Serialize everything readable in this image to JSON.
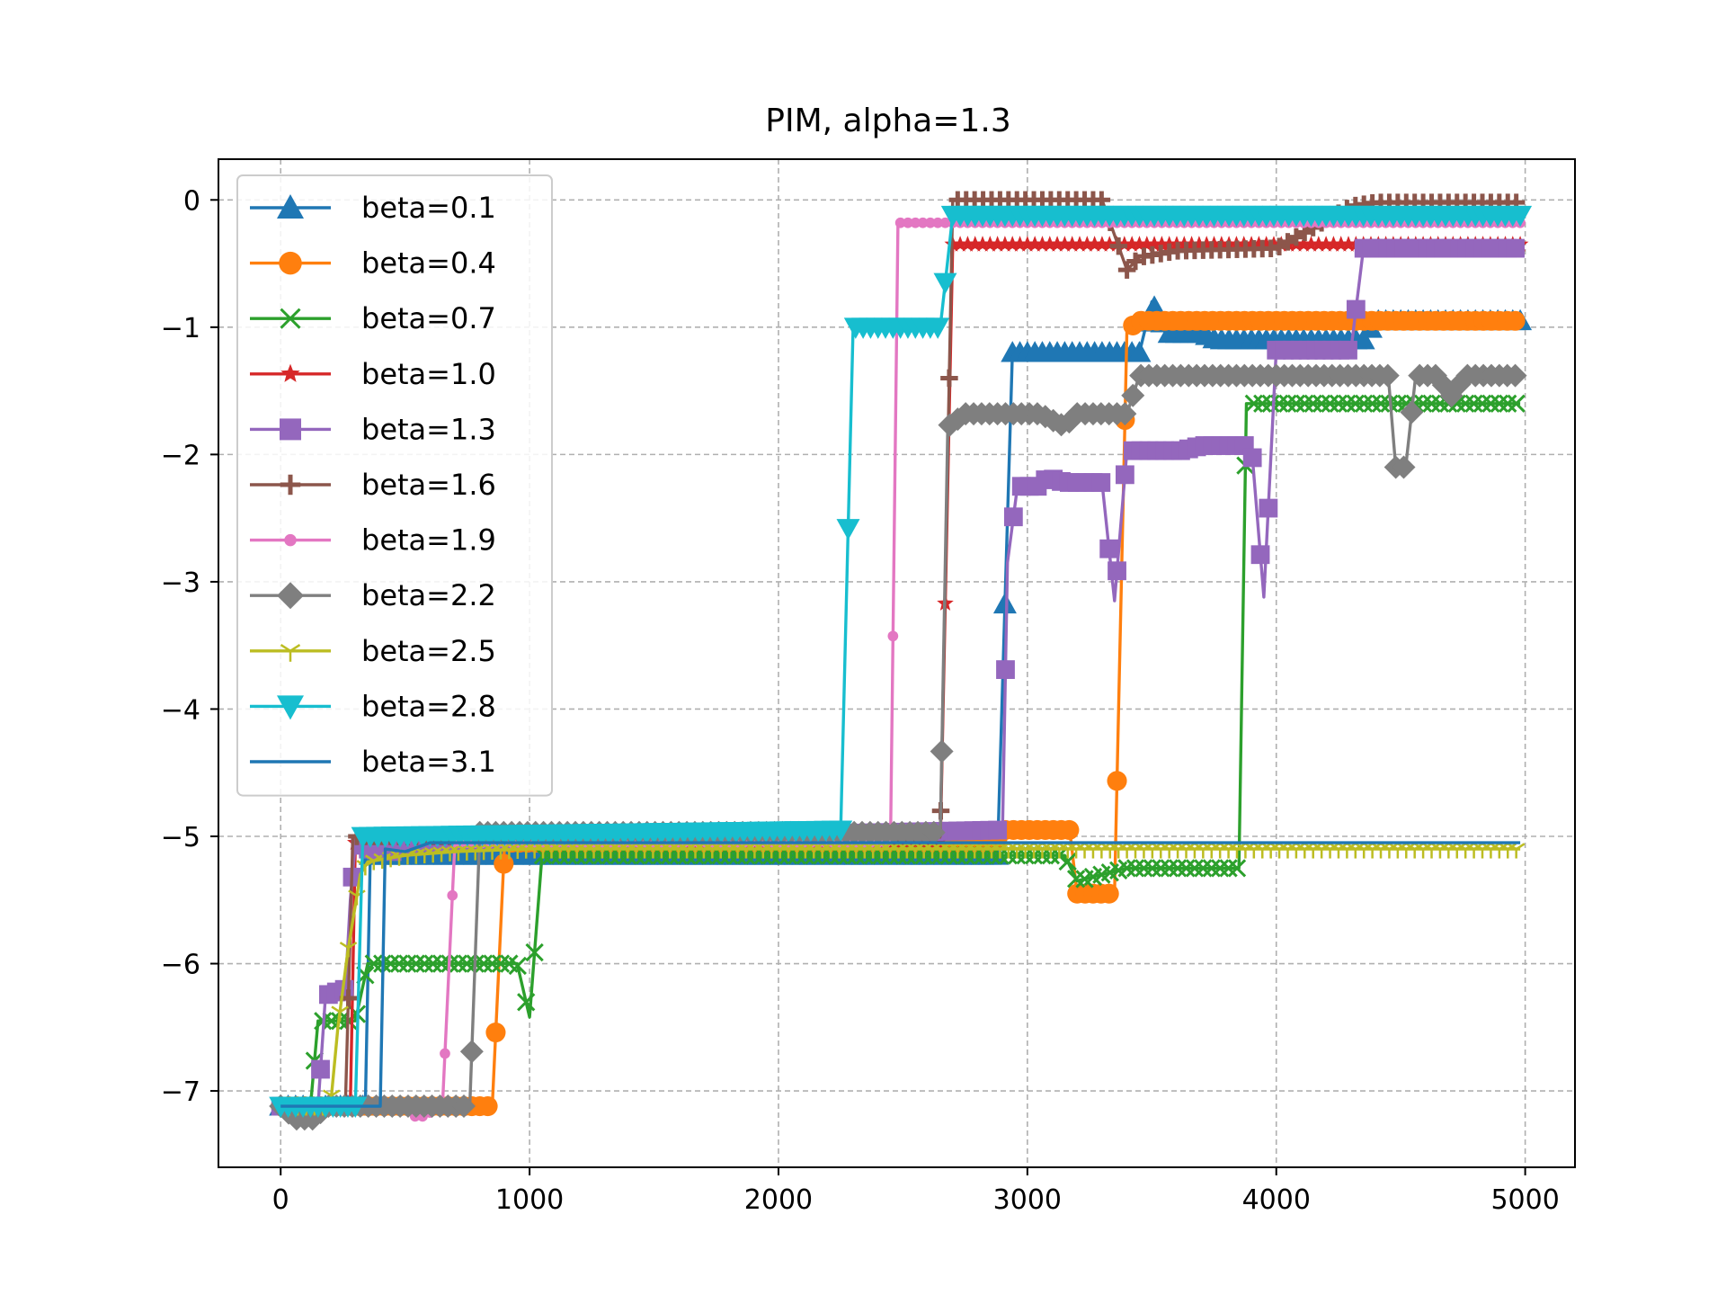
{
  "chart_data": {
    "type": "line",
    "title": "PIM, alpha=1.3",
    "xlabel": "",
    "ylabel": "",
    "xlim": [
      -250,
      5200
    ],
    "ylim": [
      -7.6,
      0.32
    ],
    "x_ticks": [
      0,
      1000,
      2000,
      3000,
      4000,
      5000
    ],
    "x_tick_labels": [
      "0",
      "1000",
      "2000",
      "3000",
      "4000",
      "5000"
    ],
    "y_ticks": [
      0,
      -1,
      -2,
      -3,
      -4,
      -5,
      -6,
      -7
    ],
    "y_tick_labels": [
      "0",
      "−1",
      "−2",
      "−3",
      "−4",
      "−5",
      "−6",
      "−7"
    ],
    "grid": true,
    "legend_position": "upper-left",
    "series": [
      {
        "name": "beta=0.1",
        "color": "#1f77b4",
        "marker": "triangle-up",
        "points": [
          [
            0,
            -7.12
          ],
          [
            340,
            -7.12
          ],
          [
            360,
            -5.15
          ],
          [
            2880,
            -5.15
          ],
          [
            2940,
            -1.2
          ],
          [
            3450,
            -1.2
          ],
          [
            3500,
            -0.8
          ],
          [
            3560,
            -1.05
          ],
          [
            3700,
            -1.05
          ],
          [
            3760,
            -1.1
          ],
          [
            4350,
            -1.1
          ],
          [
            4400,
            -0.95
          ],
          [
            4980,
            -0.95
          ]
        ]
      },
      {
        "name": "beta=0.4",
        "color": "#ff7f0e",
        "marker": "circle",
        "points": [
          [
            0,
            -7.12
          ],
          [
            850,
            -7.12
          ],
          [
            900,
            -5.05
          ],
          [
            2870,
            -5.05
          ],
          [
            2900,
            -4.95
          ],
          [
            3170,
            -4.95
          ],
          [
            3200,
            -5.45
          ],
          [
            3350,
            -5.45
          ],
          [
            3400,
            -1.02
          ],
          [
            3450,
            -0.95
          ],
          [
            4980,
            -0.95
          ]
        ]
      },
      {
        "name": "beta=0.7",
        "color": "#2ca02c",
        "marker": "x",
        "points": [
          [
            0,
            -7.12
          ],
          [
            120,
            -7.12
          ],
          [
            150,
            -6.45
          ],
          [
            300,
            -6.45
          ],
          [
            350,
            -6.0
          ],
          [
            950,
            -6.0
          ],
          [
            1000,
            -6.42
          ],
          [
            1050,
            -5.15
          ],
          [
            3150,
            -5.15
          ],
          [
            3200,
            -5.35
          ],
          [
            3400,
            -5.25
          ],
          [
            3500,
            -5.25
          ],
          [
            3560,
            -5.25
          ],
          [
            3850,
            -5.25
          ],
          [
            3880,
            -1.6
          ],
          [
            4980,
            -1.6
          ]
        ]
      },
      {
        "name": "beta=1.0",
        "color": "#d62728",
        "marker": "star",
        "points": [
          [
            0,
            -7.12
          ],
          [
            280,
            -7.12
          ],
          [
            300,
            -5.05
          ],
          [
            2650,
            -5.05
          ],
          [
            2700,
            -0.35
          ],
          [
            4980,
            -0.35
          ]
        ]
      },
      {
        "name": "beta=1.3",
        "color": "#9467bd",
        "marker": "square",
        "points": [
          [
            0,
            -7.12
          ],
          [
            150,
            -7.12
          ],
          [
            180,
            -6.25
          ],
          [
            260,
            -6.2
          ],
          [
            280,
            -5.5
          ],
          [
            300,
            -5.05
          ],
          [
            350,
            -5.1
          ],
          [
            450,
            -5.12
          ],
          [
            520,
            -5.05
          ],
          [
            2900,
            -4.95
          ],
          [
            2920,
            -2.85
          ],
          [
            2960,
            -2.25
          ],
          [
            3050,
            -2.25
          ],
          [
            3080,
            -2.18
          ],
          [
            3150,
            -2.22
          ],
          [
            3300,
            -2.22
          ],
          [
            3350,
            -3.15
          ],
          [
            3400,
            -1.97
          ],
          [
            3620,
            -1.97
          ],
          [
            3700,
            -1.93
          ],
          [
            3900,
            -1.93
          ],
          [
            3950,
            -3.12
          ],
          [
            4000,
            -1.18
          ],
          [
            4300,
            -1.18
          ],
          [
            4350,
            -0.38
          ],
          [
            4980,
            -0.38
          ]
        ]
      },
      {
        "name": "beta=1.6",
        "color": "#8c564b",
        "marker": "plus",
        "points": [
          [
            0,
            -7.12
          ],
          [
            260,
            -7.12
          ],
          [
            290,
            -5.0
          ],
          [
            2650,
            -5.0
          ],
          [
            2700,
            0.0
          ],
          [
            3300,
            0.0
          ],
          [
            3400,
            -0.55
          ],
          [
            3450,
            -0.45
          ],
          [
            3600,
            -0.4
          ],
          [
            4000,
            -0.38
          ],
          [
            4300,
            -0.05
          ],
          [
            4400,
            -0.02
          ],
          [
            4980,
            -0.02
          ]
        ]
      },
      {
        "name": "beta=1.9",
        "color": "#e377c2",
        "marker": "dot",
        "points": [
          [
            0,
            -7.12
          ],
          [
            500,
            -7.12
          ],
          [
            550,
            -7.22
          ],
          [
            650,
            -7.12
          ],
          [
            700,
            -5.05
          ],
          [
            2450,
            -5.05
          ],
          [
            2480,
            -0.18
          ],
          [
            4980,
            -0.18
          ]
        ]
      },
      {
        "name": "beta=2.2",
        "color": "#7f7f7f",
        "marker": "diamond",
        "points": [
          [
            0,
            -7.12
          ],
          [
            60,
            -7.22
          ],
          [
            140,
            -7.22
          ],
          [
            180,
            -7.12
          ],
          [
            760,
            -7.12
          ],
          [
            800,
            -4.97
          ],
          [
            2650,
            -4.97
          ],
          [
            2680,
            -1.78
          ],
          [
            2750,
            -1.68
          ],
          [
            3050,
            -1.68
          ],
          [
            3150,
            -1.78
          ],
          [
            3200,
            -1.68
          ],
          [
            3400,
            -1.68
          ],
          [
            3450,
            -1.38
          ],
          [
            4450,
            -1.38
          ],
          [
            4480,
            -2.1
          ],
          [
            4520,
            -2.1
          ],
          [
            4560,
            -1.38
          ],
          [
            4650,
            -1.38
          ],
          [
            4700,
            -1.55
          ],
          [
            4760,
            -1.38
          ],
          [
            4980,
            -1.38
          ]
        ]
      },
      {
        "name": "beta=2.5",
        "color": "#bcbd22",
        "marker": "tri-down",
        "points": [
          [
            0,
            -7.12
          ],
          [
            200,
            -7.12
          ],
          [
            230,
            -6.5
          ],
          [
            270,
            -5.9
          ],
          [
            320,
            -5.3
          ],
          [
            350,
            -5.2
          ],
          [
            500,
            -5.15
          ],
          [
            700,
            -5.12
          ],
          [
            1000,
            -5.1
          ],
          [
            4980,
            -5.1
          ]
        ]
      },
      {
        "name": "beta=2.8",
        "color": "#17becf",
        "marker": "triangle-down",
        "points": [
          [
            0,
            -7.12
          ],
          [
            300,
            -7.12
          ],
          [
            330,
            -5.0
          ],
          [
            2250,
            -4.95
          ],
          [
            2300,
            -1.0
          ],
          [
            2650,
            -1.0
          ],
          [
            2700,
            -0.12
          ],
          [
            4980,
            -0.12
          ]
        ]
      },
      {
        "name": "beta=3.1",
        "color": "#1f77b4",
        "marker": "none",
        "points": [
          [
            0,
            -7.12
          ],
          [
            400,
            -7.12
          ],
          [
            420,
            -5.1
          ],
          [
            500,
            -5.12
          ],
          [
            600,
            -5.05
          ],
          [
            4980,
            -5.05
          ]
        ]
      }
    ]
  }
}
